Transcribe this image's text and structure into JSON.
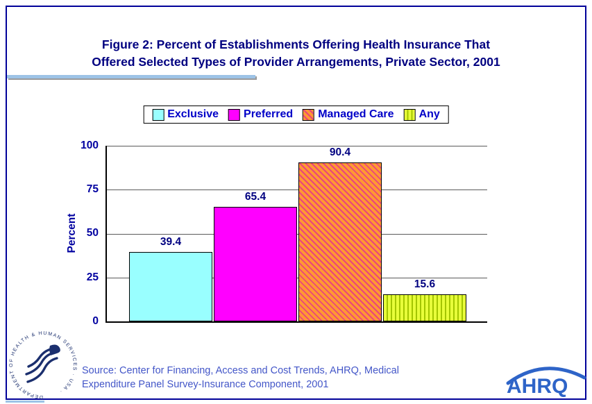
{
  "title": {
    "line1": "Figure 2: Percent of Establishments Offering Health Insurance That",
    "line2": "Offered Selected Types of Provider Arrangements, Private Sector, 2001"
  },
  "legend": [
    {
      "label": "Exclusive",
      "color": "#99FFFF",
      "pattern": "solid"
    },
    {
      "label": "Preferred",
      "color": "#FF00FF",
      "pattern": "solid"
    },
    {
      "label": "Managed Care",
      "color": "#FF9933",
      "pattern": "diagonal-hatch",
      "hatch_color": "#E8467C"
    },
    {
      "label": "Any",
      "color": "#E8FF3A",
      "pattern": "vertical-hatch",
      "hatch_color": "#A4C400"
    }
  ],
  "chart_data": {
    "type": "bar",
    "categories": [
      "Exclusive",
      "Preferred",
      "Managed Care",
      "Any"
    ],
    "values": [
      39.4,
      65.4,
      90.4,
      15.6
    ],
    "title": "Figure 2: Percent of Establishments Offering Health Insurance That Offered Selected Types of Provider Arrangements, Private Sector, 2001",
    "xlabel": "",
    "ylabel": "Percent",
    "ylim": [
      0,
      100
    ],
    "yticks": [
      0,
      25,
      50,
      75,
      100
    ],
    "grid": true,
    "legend_position": "top"
  },
  "source": {
    "line1": "Source: Center for Financing, Access and Cost Trends, AHRQ, Medical",
    "line2": "Expenditure Panel Survey-Insurance Component, 2001"
  },
  "logos": {
    "hhs_seal_text": "DEPARTMENT OF HEALTH & HUMAN SERVICES · USA ·",
    "ahrq_text": "AHRQ"
  },
  "colors": {
    "title_text": "#000080",
    "axis_labels": "#0000A0",
    "value_labels": "#000080",
    "legend_text": "#0000C8",
    "source_text": "#4356C8",
    "accent_underline": "#9DC3E6",
    "slide_border": "#000099"
  }
}
